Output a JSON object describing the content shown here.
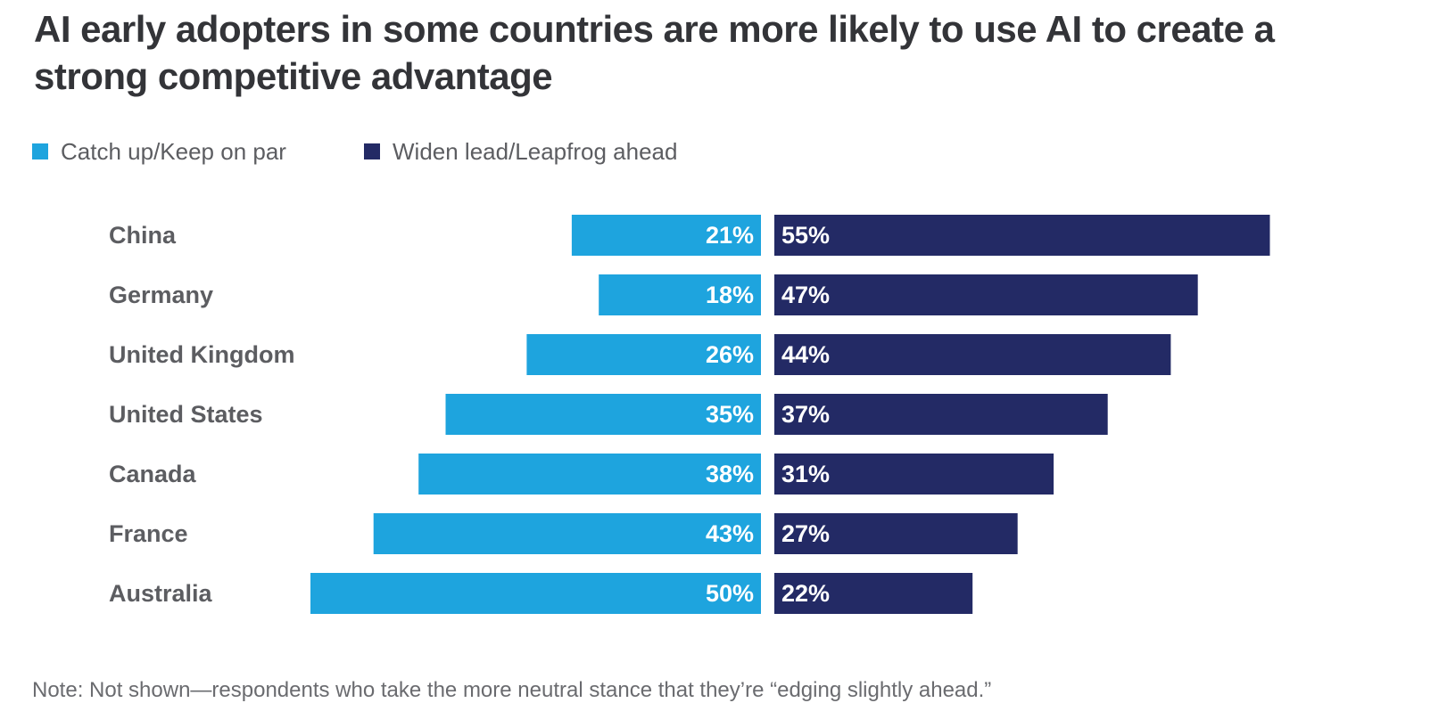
{
  "title": "AI early adopters in some countries are more likely to use AI to create a strong competitive advantage",
  "note": "Note: Not shown—respondents who take the more neutral stance that they’re “edging slightly ahead.”",
  "colors": {
    "catch_up": "#1ea4de",
    "widen_lead": "#232a65",
    "category_text": "#5c5d61",
    "value_text": "#ffffff"
  },
  "chart_data": {
    "type": "bar",
    "orientation": "horizontal",
    "layout": "diverging",
    "categories": [
      "China",
      "Germany",
      "United Kingdom",
      "United States",
      "Canada",
      "France",
      "Australia"
    ],
    "series": [
      {
        "name": "Catch up/Keep on par",
        "values": [
          21,
          18,
          26,
          35,
          38,
          43,
          50
        ],
        "labels": [
          "21%",
          "18%",
          "26%",
          "35%",
          "38%",
          "43%",
          "50%"
        ]
      },
      {
        "name": "Widen lead/Leapfrog ahead",
        "values": [
          55,
          47,
          44,
          37,
          31,
          27,
          22
        ],
        "labels": [
          "55%",
          "47%",
          "44%",
          "37%",
          "31%",
          "27%",
          "22%"
        ]
      }
    ],
    "unit": "%",
    "legend_position": "top-left",
    "grid": false
  }
}
